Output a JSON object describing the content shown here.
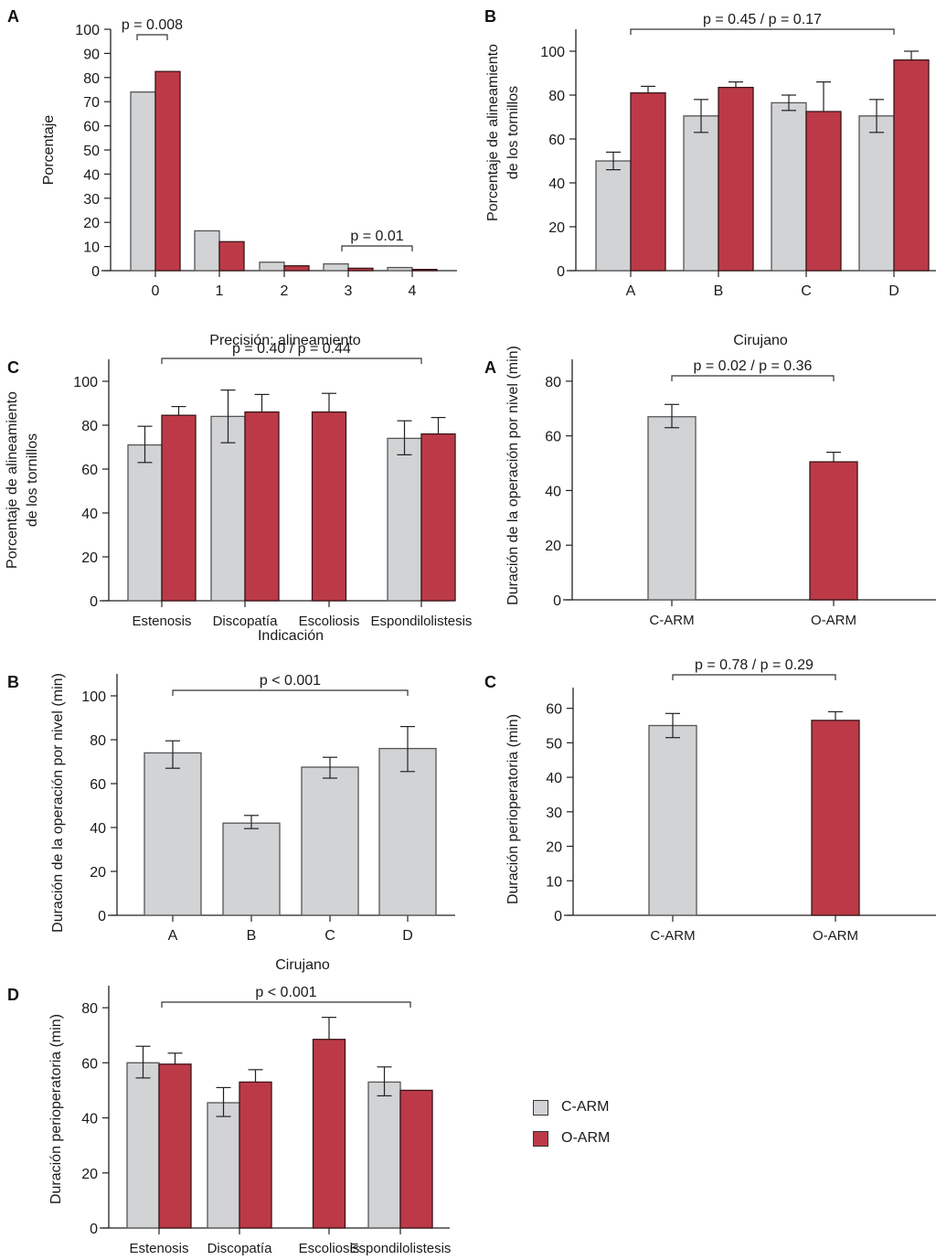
{
  "colors": {
    "c_arm": "#d1d3d5",
    "o_arm": "#bc3a47",
    "axis": "#222222"
  },
  "legend": [
    {
      "label": "C-ARM",
      "color": "#d1d3d5"
    },
    {
      "label": "O-ARM",
      "color": "#bc3a47"
    }
  ],
  "chart_data": [
    {
      "id": "precision",
      "panel": "A",
      "type": "bar",
      "title": "",
      "xlabel": "Precisión: alineamiento",
      "ylabel": "Porcentaje",
      "ylim": [
        0,
        100
      ],
      "yticks": [
        0,
        10,
        20,
        30,
        40,
        50,
        60,
        70,
        80,
        90,
        100
      ],
      "categories": [
        "0",
        "1",
        "2",
        "3",
        "4"
      ],
      "series": [
        {
          "name": "C-ARM",
          "values": [
            74,
            16.5,
            3.5,
            2.8,
            1.3
          ]
        },
        {
          "name": "O-ARM",
          "values": [
            82.5,
            12,
            2,
            1,
            0.5
          ]
        }
      ],
      "annotations": [
        {
          "text": "p = 0.008",
          "from_category": 0,
          "to_category": 0,
          "span": "within"
        },
        {
          "text": "p = 0.01",
          "from_category": 3,
          "to_category": 4,
          "span": "between"
        }
      ]
    },
    {
      "id": "alignment-surgeon",
      "panel": "B",
      "type": "bar",
      "xlabel": "Cirujano",
      "ylabel": "Porcentaje de alineamiento\nde los tornillos",
      "ylim": [
        0,
        110
      ],
      "yticks": [
        0,
        20,
        40,
        60,
        80,
        100
      ],
      "categories": [
        "A",
        "B",
        "C",
        "D"
      ],
      "series": [
        {
          "name": "C-ARM",
          "values": [
            50,
            70.5,
            76.5,
            70.5
          ],
          "err_low": [
            46,
            63,
            73,
            63
          ],
          "err_high": [
            54,
            78,
            80,
            78
          ]
        },
        {
          "name": "O-ARM",
          "values": [
            81,
            83.5,
            72.5,
            96
          ],
          "err_low": [
            81,
            83.5,
            72.5,
            96
          ],
          "err_high": [
            84,
            86,
            86,
            100
          ]
        }
      ],
      "annotations": [
        {
          "text": "p = 0.45 / p = 0.17",
          "from_category": 0,
          "to_category": 3
        }
      ]
    },
    {
      "id": "alignment-indication",
      "panel": "C",
      "type": "bar",
      "xlabel": "Indicación",
      "ylabel": "Porcentaje de alineamiento\nde los tornillos",
      "ylim": [
        0,
        110
      ],
      "yticks": [
        0,
        20,
        40,
        60,
        80,
        100
      ],
      "categories": [
        "Estenosis",
        "Discopatía",
        "Escoliosis",
        "Espondilolistesis"
      ],
      "series": [
        {
          "name": "C-ARM",
          "values": [
            71,
            84,
            null,
            74
          ],
          "err_low": [
            63,
            72,
            null,
            66.5
          ],
          "err_high": [
            79.5,
            96,
            null,
            82
          ]
        },
        {
          "name": "O-ARM",
          "values": [
            84.5,
            86,
            86,
            76
          ],
          "err_low": [
            84.5,
            86,
            86,
            76
          ],
          "err_high": [
            88.5,
            94,
            94.5,
            83.5
          ]
        }
      ],
      "annotations": [
        {
          "text": "p = 0.40 / p = 0.44",
          "from_category": 0,
          "to_category": 3
        }
      ]
    },
    {
      "id": "op-duration-device",
      "panel": "A",
      "type": "bar",
      "xlabel": "",
      "ylabel": "Duración de la operación por nivel (min)",
      "ylim": [
        0,
        88
      ],
      "yticks": [
        0,
        20,
        40,
        60,
        80
      ],
      "categories": [
        "C-ARM",
        "O-ARM"
      ],
      "series": [
        {
          "name": "Duración",
          "values": [
            67,
            50.5
          ],
          "err_low": [
            63,
            50.5
          ],
          "err_high": [
            71.5,
            54
          ]
        }
      ],
      "annotations": [
        {
          "text": "p = 0.02 / p = 0.36",
          "from_category": 0,
          "to_category": 1
        }
      ]
    },
    {
      "id": "op-duration-surgeon",
      "panel": "B",
      "type": "bar",
      "xlabel": "Cirujano",
      "ylabel": "Duración de la operación por nivel (min)",
      "ylim": [
        0,
        110
      ],
      "yticks": [
        0,
        20,
        40,
        60,
        80,
        100
      ],
      "categories": [
        "A",
        "B",
        "C",
        "D"
      ],
      "series": [
        {
          "name": "C-ARM",
          "values": [
            74,
            42,
            67.5,
            76
          ],
          "err_low": [
            67,
            39.5,
            62.5,
            65.5
          ],
          "err_high": [
            79.5,
            45.5,
            72,
            86
          ]
        }
      ],
      "annotations": [
        {
          "text": "p < 0.001",
          "from_category": 0,
          "to_category": 3
        }
      ]
    },
    {
      "id": "periop-duration-device",
      "panel": "C",
      "type": "bar",
      "xlabel": "",
      "ylabel": "Duración perioperatoria (min)",
      "ylim": [
        0,
        66
      ],
      "yticks": [
        0,
        10,
        20,
        30,
        40,
        50,
        60
      ],
      "categories": [
        "C-ARM",
        "O-ARM"
      ],
      "series": [
        {
          "name": "Duración",
          "values": [
            55,
            56.5
          ],
          "err_low": [
            51.5,
            56.5
          ],
          "err_high": [
            58.5,
            59
          ]
        }
      ],
      "annotations": [
        {
          "text": "p = 0.78 / p = 0.29",
          "from_category": 0,
          "to_category": 1
        }
      ]
    },
    {
      "id": "periop-duration-indication",
      "panel": "D",
      "type": "bar",
      "xlabel": "",
      "ylabel": "Duración perioperatoria (min)",
      "ylim": [
        0,
        88
      ],
      "yticks": [
        0,
        20,
        40,
        60,
        80
      ],
      "categories": [
        "Estenosis",
        "Discopatía",
        "Escoliosis",
        "Espondilolistesis"
      ],
      "series": [
        {
          "name": "C-ARM",
          "values": [
            60,
            45.5,
            null,
            53
          ],
          "err_low": [
            54.5,
            40.5,
            null,
            48
          ],
          "err_high": [
            66,
            51,
            null,
            58.5
          ]
        },
        {
          "name": "O-ARM",
          "values": [
            59.5,
            53,
            68.5,
            50
          ],
          "err_low": [
            59.5,
            53,
            68.5,
            null
          ],
          "err_high": [
            63.5,
            57.5,
            76.5,
            null
          ]
        }
      ],
      "annotations": [
        {
          "text": "p < 0.001",
          "from_category": 0,
          "to_category": 3
        }
      ]
    }
  ]
}
